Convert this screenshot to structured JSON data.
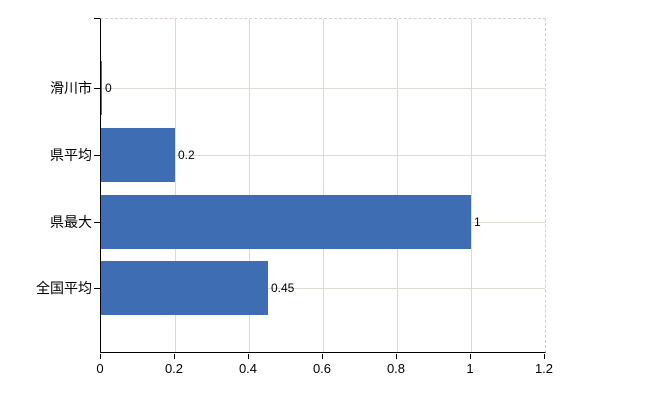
{
  "chart_data": {
    "type": "bar",
    "orientation": "horizontal",
    "title": "",
    "xlabel": "",
    "ylabel": "",
    "categories": [
      "滑川市",
      "県平均",
      "県最大",
      "全国平均"
    ],
    "values": [
      0,
      0.2,
      1,
      0.45
    ],
    "value_labels": [
      "0",
      "0.2",
      "1",
      "0.45"
    ],
    "x_ticks": [
      0,
      0.2,
      0.4,
      0.6,
      0.8,
      1,
      1.2
    ],
    "x_tick_labels": [
      "0",
      "0.2",
      "0.4",
      "0.6",
      "0.8",
      "1",
      "1.2"
    ],
    "xlim": [
      0,
      1.2
    ],
    "grid": true,
    "legend_position": "none",
    "colors": {
      "bar": "#3e6db4",
      "vertical_gridline": "#dadada",
      "horizontal_gridline": "#d8ded4",
      "dashed_border": "#d9cdd3",
      "axis": "#000000",
      "text": "#000000",
      "background": "#ffffff"
    }
  }
}
